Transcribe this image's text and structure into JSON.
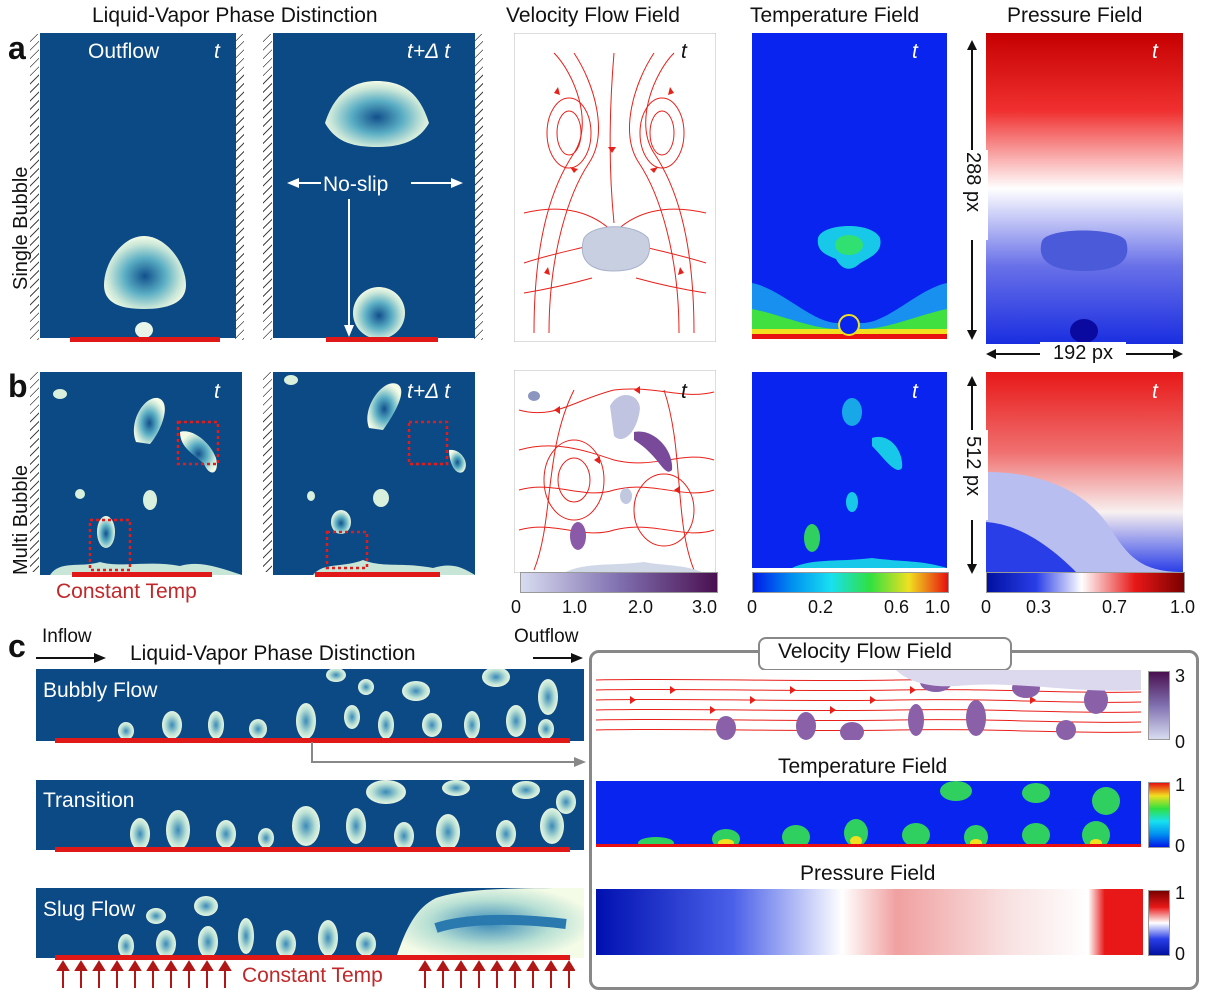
{
  "headers": {
    "phase": "Liquid-Vapor Phase Distinction",
    "velocity": "Velocity Flow Field",
    "temperature": "Temperature Field",
    "pressure": "Pressure Field"
  },
  "panels": {
    "a": "a",
    "b": "b",
    "c": "c"
  },
  "row_labels": {
    "single": "Single Bubble",
    "multi": "Multi Bubble"
  },
  "labels": {
    "outflow": "Outflow",
    "t": "t",
    "t_dt": "t+Δ t",
    "noslip": "No-slip",
    "const_temp": "Constant Temp",
    "inflow": "Inflow",
    "bubbly": "Bubbly Flow",
    "transition": "Transition",
    "slug": "Slug Flow"
  },
  "dimensions": {
    "h288": "288 px",
    "w192": "192 px",
    "h512": "512 px"
  },
  "colorbars": {
    "velocity": [
      "0",
      "1.0",
      "2.0",
      "3.0"
    ],
    "temperature": [
      "0",
      "0.2",
      "0.6",
      "1.0"
    ],
    "pressure": [
      "0",
      "0.3",
      "0.7",
      "1.0"
    ],
    "c_velocity": [
      "3",
      "0"
    ],
    "c_temperature": [
      "1",
      "0"
    ],
    "c_pressure": [
      "1",
      "0"
    ]
  },
  "colors": {
    "liquid": "#0c4a86",
    "heater": "#e11818",
    "streamline": "#e8201a",
    "frame": "#888888"
  }
}
